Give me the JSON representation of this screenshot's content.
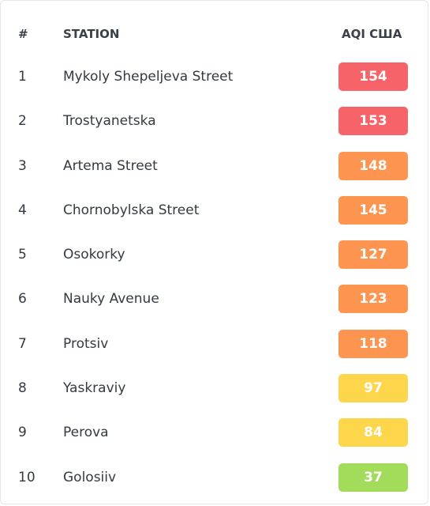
{
  "header": {
    "rank_label": "#",
    "station_label": "STATION",
    "aqi_label": "AQI США"
  },
  "colors": {
    "unhealthy": "#f66369",
    "sensitive": "#fd9450",
    "moderate": "#fdd64b",
    "good": "#a3dc5b"
  },
  "rows": [
    {
      "rank": "1",
      "station": "Mykoly Shepeljeva Street",
      "aqi": "154",
      "level": "unhealthy"
    },
    {
      "rank": "2",
      "station": "Trostyanetska",
      "aqi": "153",
      "level": "unhealthy"
    },
    {
      "rank": "3",
      "station": "Artema Street",
      "aqi": "148",
      "level": "sensitive"
    },
    {
      "rank": "4",
      "station": "Chornobylska Street",
      "aqi": "145",
      "level": "sensitive"
    },
    {
      "rank": "5",
      "station": "Osokorky",
      "aqi": "127",
      "level": "sensitive"
    },
    {
      "rank": "6",
      "station": "Nauky Avenue",
      "aqi": "123",
      "level": "sensitive"
    },
    {
      "rank": "7",
      "station": "Protsiv",
      "aqi": "118",
      "level": "sensitive"
    },
    {
      "rank": "8",
      "station": "Yaskraviy",
      "aqi": "97",
      "level": "moderate"
    },
    {
      "rank": "9",
      "station": "Perova",
      "aqi": "84",
      "level": "moderate"
    },
    {
      "rank": "10",
      "station": "Golosiiv",
      "aqi": "37",
      "level": "good"
    }
  ]
}
